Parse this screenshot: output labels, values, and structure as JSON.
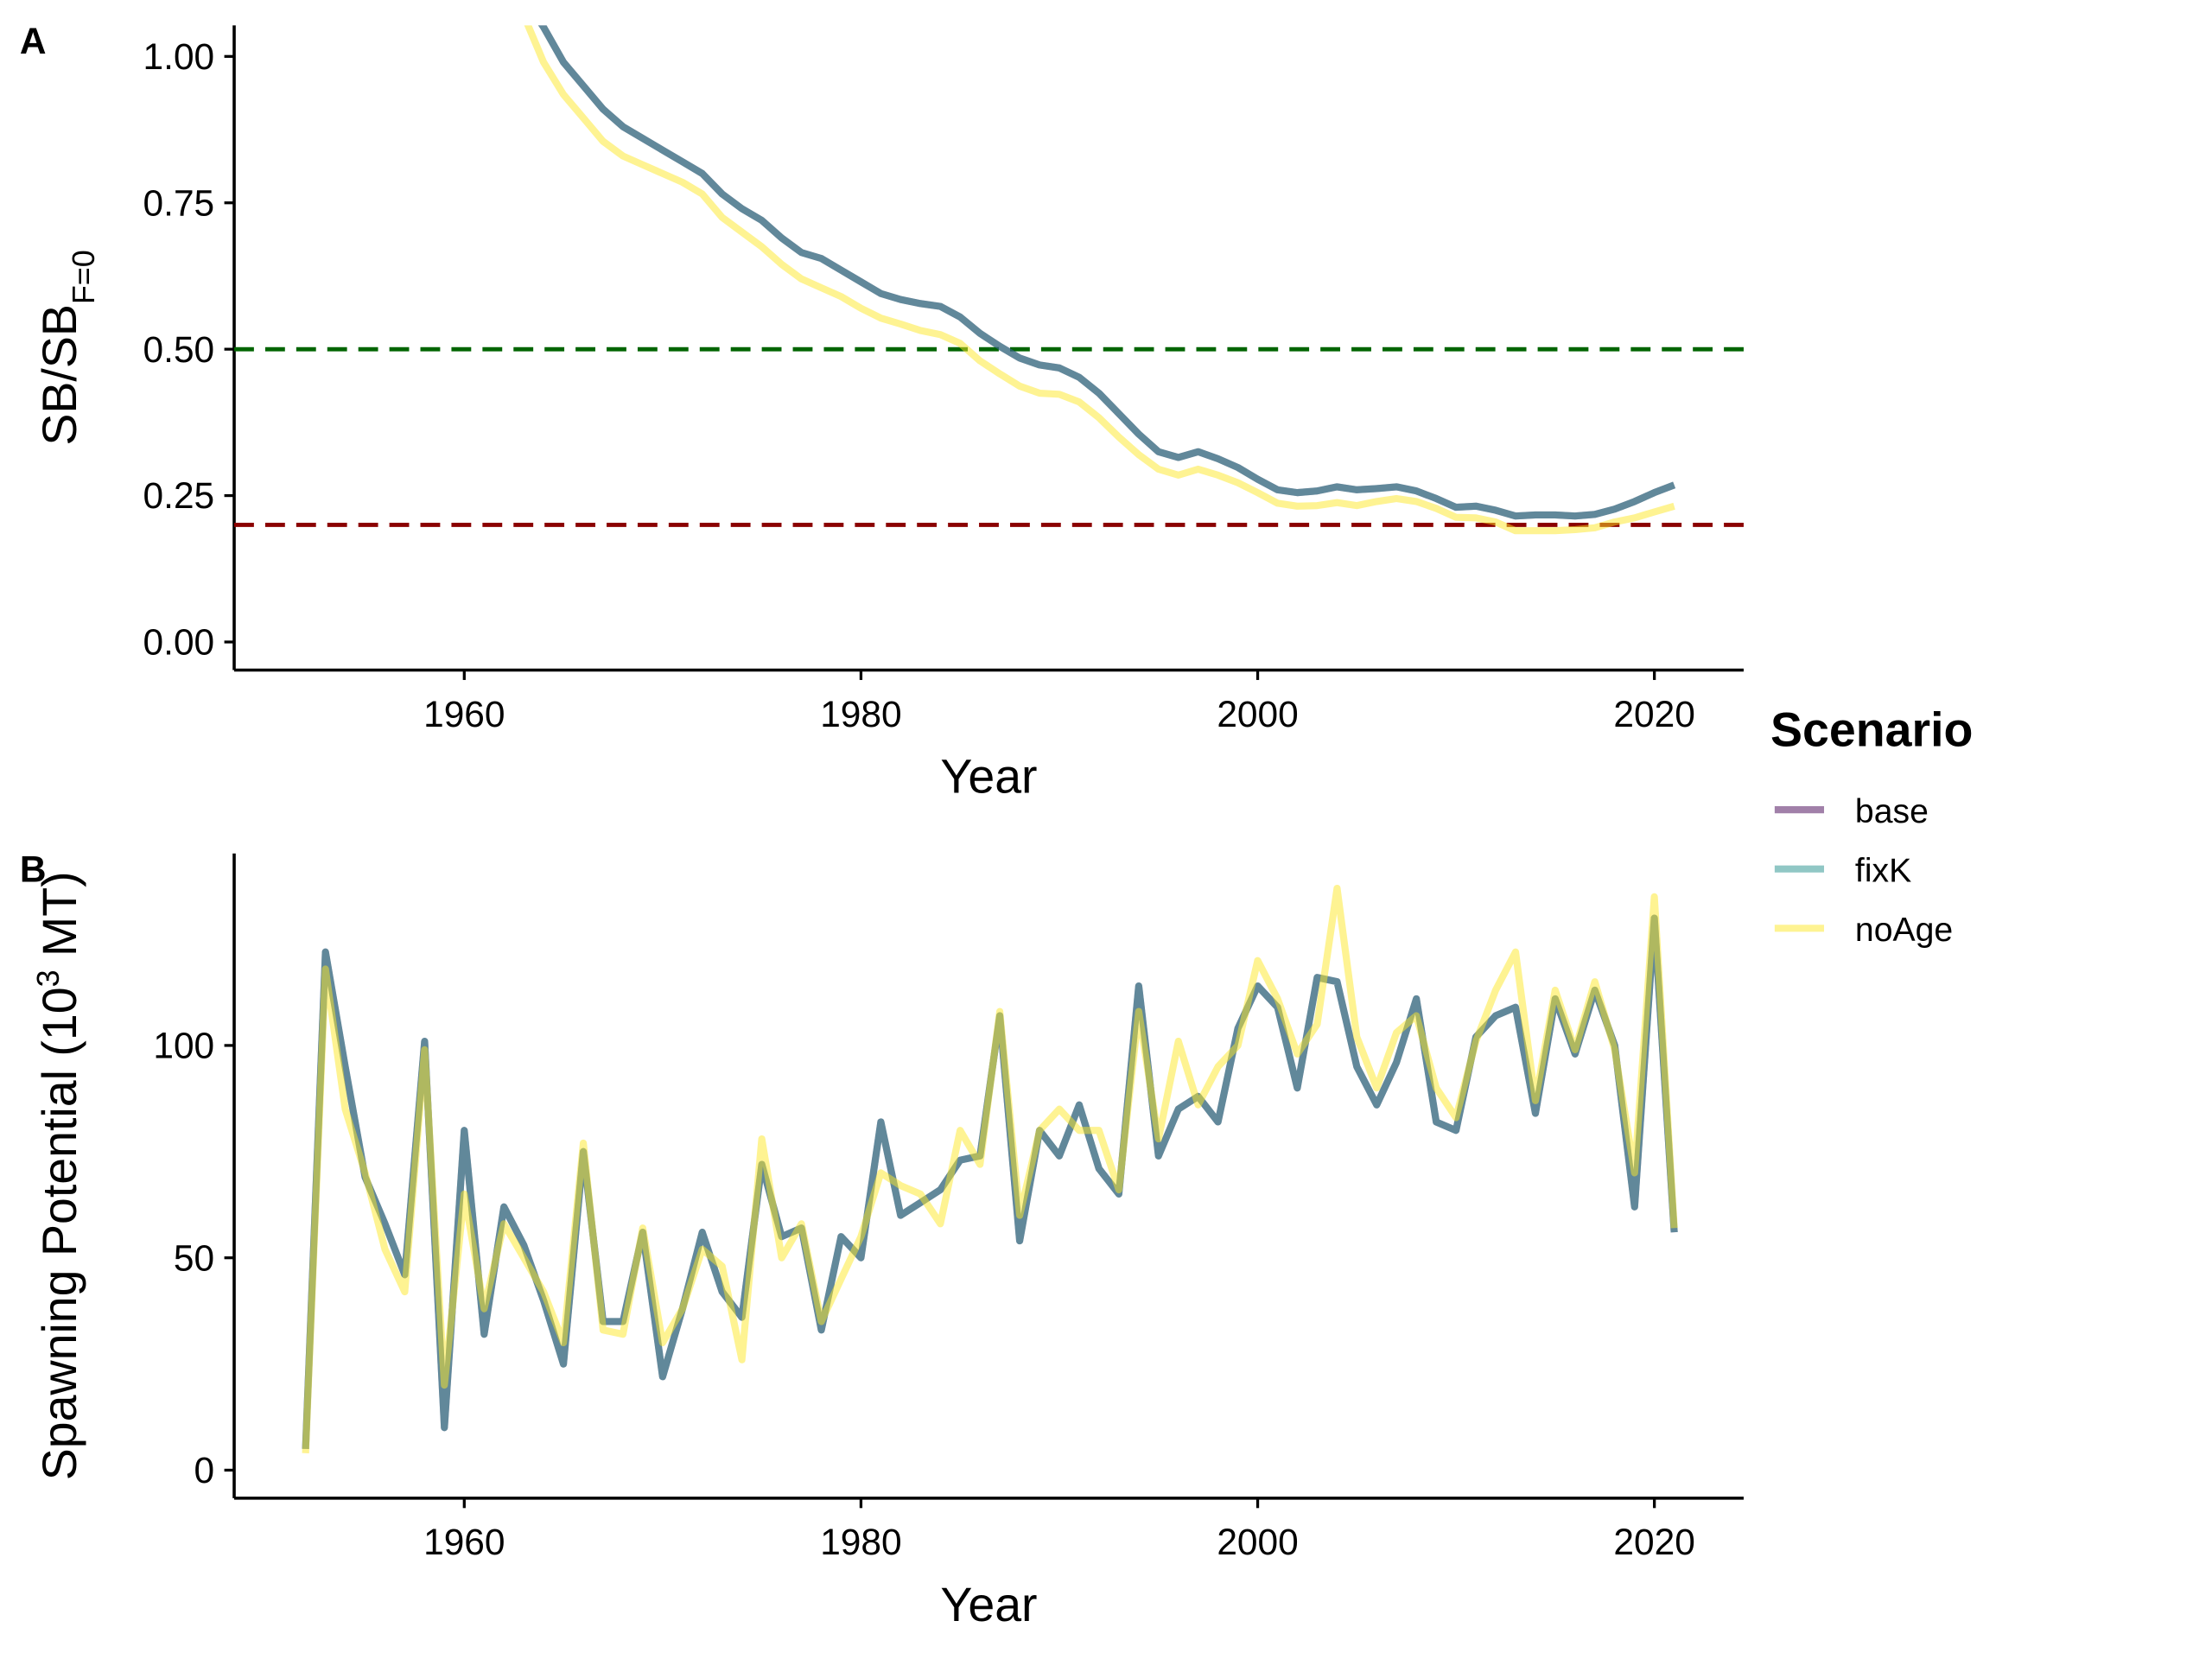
{
  "legend_title": "Scenario",
  "chart_data": [
    {
      "type": "line",
      "panel": "A",
      "xlabel": "Year",
      "ylabel_parts": [
        "SB/SB",
        "F=0"
      ],
      "ylabel_script": "sub",
      "xlim": [
        1948.4,
        2024.5
      ],
      "ylim": [
        -0.048,
        1.053
      ],
      "xticks": [
        1960,
        1980,
        2000,
        2020
      ],
      "yticks": [
        {
          "value": 0,
          "label": "0.00"
        },
        0.25,
        {
          "value": 0.5,
          "label": "0.50"
        },
        0.75,
        {
          "value": 1,
          "label": "1.00"
        }
      ],
      "alpha": 0.5,
      "hlines": [
        {
          "value": 0.5,
          "color": "#006400"
        },
        {
          "value": 0.2,
          "color": "#8b0000"
        }
      ],
      "x": [
        1963,
        1964,
        1965,
        1966,
        1967,
        1968,
        1969,
        1970,
        1971,
        1972,
        1973,
        1974,
        1975,
        1976,
        1977,
        1978,
        1979,
        1980,
        1981,
        1982,
        1983,
        1984,
        1985,
        1986,
        1987,
        1988,
        1989,
        1990,
        1991,
        1992,
        1993,
        1994,
        1995,
        1996,
        1997,
        1998,
        1999,
        2000,
        2001,
        2002,
        2003,
        2004,
        2005,
        2006,
        2007,
        2008,
        2009,
        2010,
        2011,
        2012,
        2013,
        2014,
        2015,
        2016,
        2017,
        2018,
        2019,
        2020,
        2021
      ],
      "series": [
        {
          "name": "base",
          "color": "#440154",
          "values": [
            1.1,
            1.05,
            0.99,
            0.95,
            0.91,
            0.88,
            0.86,
            0.84,
            0.82,
            0.8,
            0.765,
            0.74,
            0.72,
            0.69,
            0.665,
            0.655,
            0.635,
            0.615,
            0.595,
            0.585,
            0.578,
            0.573,
            0.555,
            0.527,
            0.505,
            0.485,
            0.473,
            0.468,
            0.452,
            0.425,
            0.39,
            0.355,
            0.325,
            0.315,
            0.325,
            0.313,
            0.298,
            0.278,
            0.26,
            0.255,
            0.258,
            0.265,
            0.26,
            0.262,
            0.265,
            0.258,
            0.245,
            0.23,
            0.232,
            0.225,
            0.215,
            0.217,
            0.217,
            0.215,
            0.218,
            0.227,
            0.24,
            0.255,
            0.268
          ]
        },
        {
          "name": "fixK",
          "color": "#21908c",
          "values": [
            1.1,
            1.05,
            0.99,
            0.95,
            0.91,
            0.88,
            0.86,
            0.84,
            0.82,
            0.8,
            0.765,
            0.74,
            0.72,
            0.69,
            0.665,
            0.655,
            0.635,
            0.615,
            0.595,
            0.585,
            0.578,
            0.573,
            0.555,
            0.527,
            0.505,
            0.485,
            0.473,
            0.468,
            0.452,
            0.425,
            0.39,
            0.355,
            0.325,
            0.315,
            0.325,
            0.313,
            0.298,
            0.278,
            0.26,
            0.255,
            0.258,
            0.265,
            0.26,
            0.262,
            0.265,
            0.258,
            0.245,
            0.23,
            0.232,
            0.225,
            0.215,
            0.217,
            0.217,
            0.215,
            0.218,
            0.227,
            0.24,
            0.255,
            0.268
          ]
        },
        {
          "name": "noAge",
          "color": "#fde725",
          "values": [
            1.07,
            0.99,
            0.935,
            0.895,
            0.855,
            0.83,
            0.815,
            0.8,
            0.785,
            0.765,
            0.725,
            0.7,
            0.675,
            0.645,
            0.62,
            0.605,
            0.59,
            0.57,
            0.553,
            0.543,
            0.532,
            0.525,
            0.51,
            0.48,
            0.458,
            0.437,
            0.425,
            0.423,
            0.41,
            0.383,
            0.35,
            0.32,
            0.295,
            0.285,
            0.295,
            0.285,
            0.272,
            0.255,
            0.237,
            0.232,
            0.233,
            0.238,
            0.233,
            0.24,
            0.245,
            0.24,
            0.228,
            0.213,
            0.212,
            0.205,
            0.19,
            0.19,
            0.19,
            0.192,
            0.195,
            0.205,
            0.212,
            0.222,
            0.232
          ]
        }
      ]
    },
    {
      "type": "line",
      "panel": "B",
      "xlabel": "Year",
      "ylabel_parts": [
        "Spawning Potential (10",
        "3",
        " MT)"
      ],
      "ylabel_script": "sup",
      "xlim": [
        1948.4,
        2024.5
      ],
      "ylim": [
        -6.6,
        145.2
      ],
      "xticks": [
        1960,
        1980,
        2000,
        2020
      ],
      "yticks": [
        0,
        50,
        100
      ],
      "alpha": 0.5,
      "x": [
        1952,
        1953,
        1954,
        1955,
        1956,
        1957,
        1958,
        1959,
        1960,
        1961,
        1962,
        1963,
        1964,
        1965,
        1966,
        1967,
        1968,
        1969,
        1970,
        1971,
        1972,
        1973,
        1974,
        1975,
        1976,
        1977,
        1978,
        1979,
        1980,
        1981,
        1982,
        1983,
        1984,
        1985,
        1986,
        1987,
        1988,
        1989,
        1990,
        1991,
        1992,
        1993,
        1994,
        1995,
        1996,
        1997,
        1998,
        1999,
        2000,
        2001,
        2002,
        2003,
        2004,
        2005,
        2006,
        2007,
        2008,
        2009,
        2010,
        2011,
        2012,
        2013,
        2014,
        2015,
        2016,
        2017,
        2018,
        2019,
        2020,
        2021
      ],
      "series": [
        {
          "name": "base",
          "color": "#440154",
          "values": [
            5,
            122,
            95,
            69,
            58,
            46,
            101,
            10,
            80,
            32,
            62,
            53,
            40,
            25,
            75,
            35,
            35,
            56,
            22,
            38,
            56,
            42,
            36,
            72,
            55,
            57,
            33,
            55,
            50,
            82,
            60,
            63,
            66,
            73,
            74,
            107,
            54,
            80,
            74,
            86,
            71,
            65,
            114,
            74,
            85,
            88,
            82,
            104,
            114,
            109,
            90,
            116,
            115,
            95,
            86,
            96,
            111,
            82,
            80,
            102,
            107,
            109,
            84,
            111,
            98,
            113,
            100,
            62,
            130,
            56
          ]
        },
        {
          "name": "fixK",
          "color": "#21908c",
          "values": [
            5,
            122,
            95,
            69,
            58,
            46,
            101,
            10,
            80,
            32,
            62,
            53,
            40,
            25,
            75,
            35,
            35,
            56,
            22,
            38,
            56,
            42,
            36,
            72,
            55,
            57,
            33,
            55,
            50,
            82,
            60,
            63,
            66,
            73,
            74,
            107,
            54,
            80,
            74,
            86,
            71,
            65,
            114,
            74,
            85,
            88,
            82,
            104,
            114,
            109,
            90,
            116,
            115,
            95,
            86,
            96,
            111,
            82,
            80,
            102,
            107,
            109,
            84,
            111,
            98,
            113,
            100,
            62,
            130,
            56
          ]
        },
        {
          "name": "noAge",
          "color": "#fde725",
          "values": [
            4,
            118,
            85,
            70,
            52,
            42,
            99,
            20,
            65,
            38,
            58,
            50,
            42,
            30,
            77,
            33,
            32,
            57,
            30,
            38,
            52,
            48,
            26,
            78,
            50,
            58,
            35,
            45,
            55,
            70,
            67,
            65,
            58,
            80,
            72,
            108,
            60,
            80,
            85,
            80,
            80,
            66,
            108,
            78,
            101,
            86,
            95,
            100,
            120,
            111,
            98,
            105,
            137,
            102,
            90,
            103,
            107,
            90,
            83,
            101,
            113,
            122,
            87,
            113,
            99,
            115,
            99,
            70,
            135,
            57
          ]
        }
      ]
    }
  ]
}
